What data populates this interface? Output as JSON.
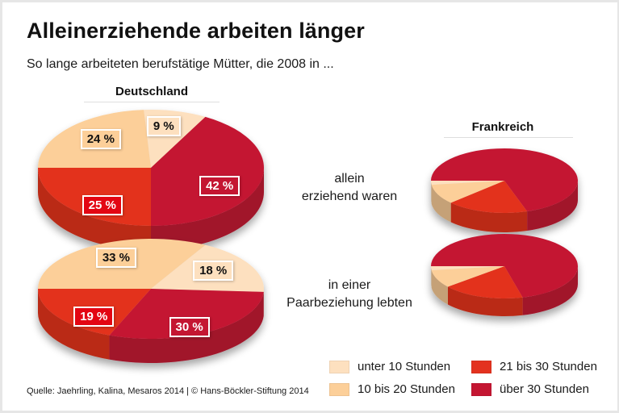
{
  "title": "Alleinerziehende arbeiten länger",
  "subtitle": "So lange arbeiteten berufstätige Mütter, die 2008 in ...",
  "source": "Quelle: Jaehrling, Kalina, Mesaros 2014 | © Hans-Böckler-Stiftung 2014",
  "colors": {
    "unter10": "#fde0bf",
    "10bis20": "#fccf99",
    "21bis30": "#e3321f",
    "ueber30": "#c41632",
    "label_21bis30": "#e30613"
  },
  "chart_data": {
    "type": "pie",
    "title": "Alleinerziehende arbeiten länger",
    "subtitle": "So lange arbeiteten berufstätige Mütter, die 2008 in ...",
    "categories": [
      "unter 10 Stunden",
      "10 bis 20 Stunden",
      "21 bis 30 Stunden",
      "über 30 Stunden"
    ],
    "groups": [
      "allein erziehend waren",
      "in einer Paarbeziehung lebten"
    ],
    "countries": [
      {
        "name": "Deutschland",
        "pies": [
          {
            "group": "allein erziehend waren",
            "values": [
              9,
              24,
              25,
              42
            ],
            "labels": [
              "9%",
              "24%",
              "25%",
              "42%"
            ]
          },
          {
            "group": "in einer Paarbeziehung lebten",
            "values": [
              18,
              33,
              19,
              30
            ],
            "labels": [
              "18%",
              "33%",
              "19%",
              "30%"
            ]
          }
        ]
      },
      {
        "name": "Frankreich",
        "pies": [
          {
            "group": "allein erziehend waren",
            "values": [
              2,
              10,
              18,
              70
            ],
            "labels": []
          },
          {
            "group": "in einer Paarbeziehung lebten",
            "values": [
              2,
              9,
              18,
              71
            ],
            "labels": []
          }
        ]
      }
    ],
    "legend": [
      "unter 10 Stunden",
      "10 bis 20 Stunden",
      "21 bis 30 Stunden",
      "über 30 Stunden"
    ],
    "legend_position": "bottom-right"
  },
  "middle_labels": {
    "alone_line1": "allein",
    "alone_line2": "erziehend waren",
    "couple_line1": "in einer",
    "couple_line2": "Paarbeziehung lebten"
  }
}
